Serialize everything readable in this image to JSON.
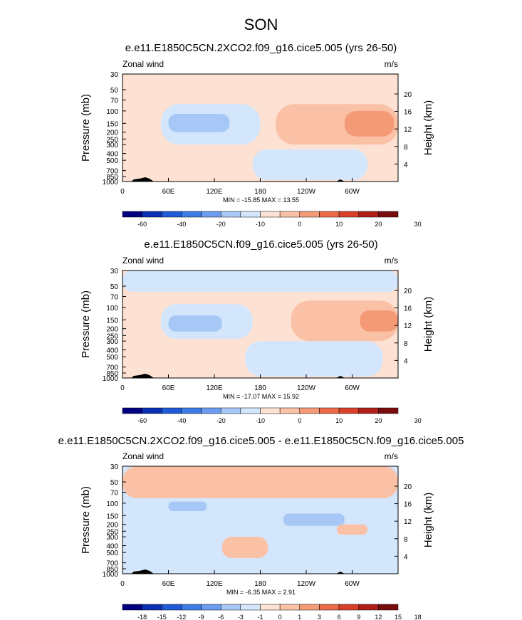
{
  "page_title": "SON",
  "colors": {
    "wind_scale": [
      "#000080",
      "#0a2fb0",
      "#1f5ad6",
      "#3d7ce8",
      "#6b9cf0",
      "#a7c8f7",
      "#d3e6fb",
      "#fde2d4",
      "#fbc1a6",
      "#f59a77",
      "#ec6a48",
      "#d8402a",
      "#b01e18",
      "#7a0b0d"
    ],
    "diff_scale": [
      "#000080",
      "#0a2fb0",
      "#1f5ad6",
      "#3d7ce8",
      "#6b9cf0",
      "#a7c8f7",
      "#d3e6fb",
      "#fde2d4",
      "#fbc1a6",
      "#f59a77",
      "#ec6a48",
      "#d8402a",
      "#b01e18",
      "#7a0b0d"
    ],
    "topography": "#000000"
  },
  "chart_data": [
    {
      "type": "heatmap",
      "title": "e.e11.E1850C5CN.2XCO2.f09_g16.cice5.005 (yrs 26-50)",
      "left_string": "Zonal wind",
      "right_string": "m/s",
      "xlabel": "",
      "ylabel": "Pressure (mb)",
      "ylabel_right": "Height (km)",
      "x_ticks": [
        "0",
        "60E",
        "120E",
        "180",
        "120W",
        "60W"
      ],
      "y_ticks": [
        "30",
        "50",
        "70",
        "100",
        "150",
        "200",
        "250",
        "300",
        "400",
        "500",
        "700",
        "850",
        "1000"
      ],
      "y_ticks_right": [
        "20",
        "16",
        "12",
        "8",
        "4"
      ],
      "xlim": [
        0,
        360
      ],
      "ylim": [
        1000,
        30
      ],
      "stats": "MIN = -15.85  MAX =  13.55",
      "colorbar_labels": [
        "-60",
        "-40",
        "-20",
        "-10",
        "0",
        "10",
        "20",
        "30"
      ],
      "regions": [
        {
          "level": 0,
          "lon": [
            0,
            360
          ],
          "p": [
            30,
            45
          ]
        },
        {
          "level": -1,
          "lon": [
            50,
            180
          ],
          "p": [
            80,
            300
          ]
        },
        {
          "level": -2,
          "lon": [
            60,
            140
          ],
          "p": [
            110,
            200
          ]
        },
        {
          "level": 1,
          "lon": [
            200,
            360
          ],
          "p": [
            80,
            300
          ]
        },
        {
          "level": 2,
          "lon": [
            290,
            355
          ],
          "p": [
            100,
            230
          ]
        },
        {
          "level": -1,
          "lon": [
            170,
            320
          ],
          "p": [
            350,
            950
          ]
        }
      ]
    },
    {
      "type": "heatmap",
      "title": "e.e11.E1850C5CN.f09_g16.cice5.005 (yrs 26-50)",
      "left_string": "Zonal wind",
      "right_string": "m/s",
      "xlabel": "",
      "ylabel": "Pressure (mb)",
      "ylabel_right": "Height (km)",
      "x_ticks": [
        "0",
        "60E",
        "120E",
        "180",
        "120W",
        "60W"
      ],
      "y_ticks": [
        "30",
        "50",
        "70",
        "100",
        "150",
        "200",
        "250",
        "300",
        "400",
        "500",
        "700",
        "850",
        "1000"
      ],
      "y_ticks_right": [
        "20",
        "16",
        "12",
        "8",
        "4"
      ],
      "xlim": [
        0,
        360
      ],
      "ylim": [
        1000,
        30
      ],
      "stats": "MIN = -17.07  MAX =  15.92",
      "colorbar_labels": [
        "-60",
        "-40",
        "-20",
        "-10",
        "0",
        "10",
        "20",
        "30"
      ],
      "regions": [
        {
          "level": -1,
          "lon": [
            0,
            360
          ],
          "p": [
            30,
            60
          ]
        },
        {
          "level": -1,
          "lon": [
            50,
            170
          ],
          "p": [
            90,
            280
          ]
        },
        {
          "level": -2,
          "lon": [
            60,
            130
          ],
          "p": [
            130,
            220
          ]
        },
        {
          "level": 1,
          "lon": [
            220,
            360
          ],
          "p": [
            80,
            300
          ]
        },
        {
          "level": 2,
          "lon": [
            310,
            360
          ],
          "p": [
            110,
            220
          ]
        },
        {
          "level": -1,
          "lon": [
            160,
            340
          ],
          "p": [
            300,
            950
          ]
        }
      ]
    },
    {
      "type": "heatmap",
      "title": "e.e11.E1850C5CN.2XCO2.f09_g16.cice5.005 - e.e11.E1850C5CN.f09_g16.cice5.005",
      "left_string": "Zonal wind",
      "right_string": "m/s",
      "xlabel": "",
      "ylabel": "Pressure (mb)",
      "ylabel_right": "Height (km)",
      "x_ticks": [
        "0",
        "60E",
        "120E",
        "180",
        "120W",
        "60W"
      ],
      "y_ticks": [
        "30",
        "50",
        "70",
        "100",
        "150",
        "200",
        "250",
        "300",
        "400",
        "500",
        "700",
        "850",
        "1000"
      ],
      "y_ticks_right": [
        "20",
        "16",
        "12",
        "8",
        "4"
      ],
      "xlim": [
        0,
        360
      ],
      "ylim": [
        1000,
        30
      ],
      "stats": "MIN = -6.35  MAX =  2.91",
      "colorbar_labels": [
        "-18",
        "-15",
        "-12",
        "-9",
        "-6",
        "-3",
        "-1",
        "0",
        "1",
        "3",
        "6",
        "9",
        "12",
        "15",
        "18"
      ],
      "regions": [
        {
          "level": 1,
          "lon": [
            0,
            360
          ],
          "p": [
            30,
            85
          ]
        },
        {
          "level": -1,
          "lon": [
            0,
            150
          ],
          "p": [
            100,
            300
          ]
        },
        {
          "level": -2,
          "lon": [
            60,
            110
          ],
          "p": [
            95,
            130
          ]
        },
        {
          "level": -1,
          "lon": [
            190,
            310
          ],
          "p": [
            120,
            280
          ]
        },
        {
          "level": -2,
          "lon": [
            210,
            290
          ],
          "p": [
            140,
            210
          ]
        },
        {
          "level": 1,
          "lon": [
            130,
            190
          ],
          "p": [
            300,
            600
          ]
        },
        {
          "level": 1,
          "lon": [
            280,
            320
          ],
          "p": [
            200,
            280
          ]
        },
        {
          "level": -1,
          "lon": [
            0,
            40
          ],
          "p": [
            120,
            200
          ]
        }
      ]
    }
  ]
}
